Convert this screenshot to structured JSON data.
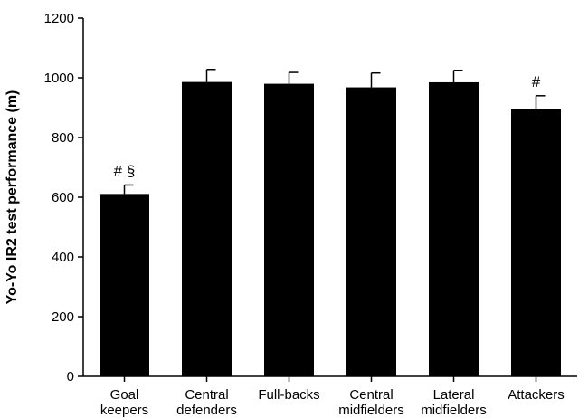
{
  "chart_data": {
    "type": "bar",
    "title": "",
    "xlabel": "",
    "ylabel": "Yo-Yo IR2 test performance (m)",
    "ylim": [
      0,
      1200
    ],
    "yticks": [
      0,
      200,
      400,
      600,
      800,
      1000,
      1200
    ],
    "grid": false,
    "legend": "none",
    "bar_color": "#000000",
    "categories": [
      [
        "Goal",
        "keepers"
      ],
      [
        "Central",
        "defenders"
      ],
      [
        "Full-backs"
      ],
      [
        "Central",
        "midfielders"
      ],
      [
        "Lateral",
        "midfielders"
      ],
      [
        "Attackers"
      ]
    ],
    "values": [
      611,
      986,
      980,
      968,
      985,
      894
    ],
    "errors": [
      30,
      42,
      38,
      48,
      40,
      46
    ],
    "annotations": [
      "# §",
      "",
      "",
      "",
      "",
      "#"
    ]
  }
}
